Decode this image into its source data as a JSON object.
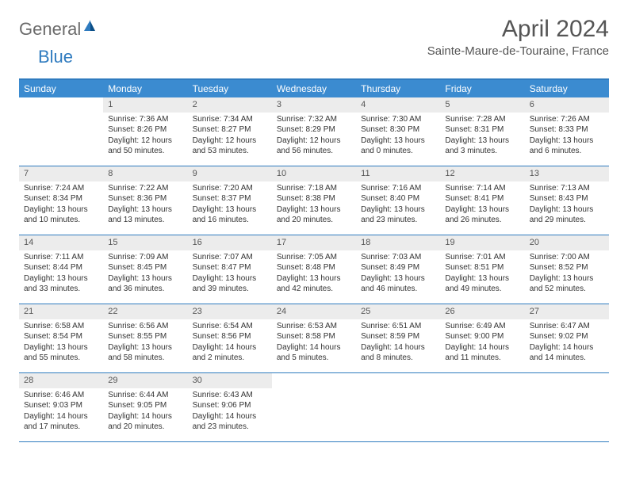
{
  "logo": {
    "general": "General",
    "blue": "Blue"
  },
  "header": {
    "month": "April 2024",
    "location": "Sainte-Maure-de-Touraine, France"
  },
  "colors": {
    "accent": "#3b8bd0",
    "border": "#2f7bbf",
    "dayband": "#ececec",
    "text": "#333333",
    "logo_gray": "#6b6b6b"
  },
  "daynames": [
    "Sunday",
    "Monday",
    "Tuesday",
    "Wednesday",
    "Thursday",
    "Friday",
    "Saturday"
  ],
  "first_weekday_index": 1,
  "days": [
    {
      "n": 1,
      "sr": "7:36 AM",
      "ss": "8:26 PM",
      "dl": "12 hours and 50 minutes."
    },
    {
      "n": 2,
      "sr": "7:34 AM",
      "ss": "8:27 PM",
      "dl": "12 hours and 53 minutes."
    },
    {
      "n": 3,
      "sr": "7:32 AM",
      "ss": "8:29 PM",
      "dl": "12 hours and 56 minutes."
    },
    {
      "n": 4,
      "sr": "7:30 AM",
      "ss": "8:30 PM",
      "dl": "13 hours and 0 minutes."
    },
    {
      "n": 5,
      "sr": "7:28 AM",
      "ss": "8:31 PM",
      "dl": "13 hours and 3 minutes."
    },
    {
      "n": 6,
      "sr": "7:26 AM",
      "ss": "8:33 PM",
      "dl": "13 hours and 6 minutes."
    },
    {
      "n": 7,
      "sr": "7:24 AM",
      "ss": "8:34 PM",
      "dl": "13 hours and 10 minutes."
    },
    {
      "n": 8,
      "sr": "7:22 AM",
      "ss": "8:36 PM",
      "dl": "13 hours and 13 minutes."
    },
    {
      "n": 9,
      "sr": "7:20 AM",
      "ss": "8:37 PM",
      "dl": "13 hours and 16 minutes."
    },
    {
      "n": 10,
      "sr": "7:18 AM",
      "ss": "8:38 PM",
      "dl": "13 hours and 20 minutes."
    },
    {
      "n": 11,
      "sr": "7:16 AM",
      "ss": "8:40 PM",
      "dl": "13 hours and 23 minutes."
    },
    {
      "n": 12,
      "sr": "7:14 AM",
      "ss": "8:41 PM",
      "dl": "13 hours and 26 minutes."
    },
    {
      "n": 13,
      "sr": "7:13 AM",
      "ss": "8:43 PM",
      "dl": "13 hours and 29 minutes."
    },
    {
      "n": 14,
      "sr": "7:11 AM",
      "ss": "8:44 PM",
      "dl": "13 hours and 33 minutes."
    },
    {
      "n": 15,
      "sr": "7:09 AM",
      "ss": "8:45 PM",
      "dl": "13 hours and 36 minutes."
    },
    {
      "n": 16,
      "sr": "7:07 AM",
      "ss": "8:47 PM",
      "dl": "13 hours and 39 minutes."
    },
    {
      "n": 17,
      "sr": "7:05 AM",
      "ss": "8:48 PM",
      "dl": "13 hours and 42 minutes."
    },
    {
      "n": 18,
      "sr": "7:03 AM",
      "ss": "8:49 PM",
      "dl": "13 hours and 46 minutes."
    },
    {
      "n": 19,
      "sr": "7:01 AM",
      "ss": "8:51 PM",
      "dl": "13 hours and 49 minutes."
    },
    {
      "n": 20,
      "sr": "7:00 AM",
      "ss": "8:52 PM",
      "dl": "13 hours and 52 minutes."
    },
    {
      "n": 21,
      "sr": "6:58 AM",
      "ss": "8:54 PM",
      "dl": "13 hours and 55 minutes."
    },
    {
      "n": 22,
      "sr": "6:56 AM",
      "ss": "8:55 PM",
      "dl": "13 hours and 58 minutes."
    },
    {
      "n": 23,
      "sr": "6:54 AM",
      "ss": "8:56 PM",
      "dl": "14 hours and 2 minutes."
    },
    {
      "n": 24,
      "sr": "6:53 AM",
      "ss": "8:58 PM",
      "dl": "14 hours and 5 minutes."
    },
    {
      "n": 25,
      "sr": "6:51 AM",
      "ss": "8:59 PM",
      "dl": "14 hours and 8 minutes."
    },
    {
      "n": 26,
      "sr": "6:49 AM",
      "ss": "9:00 PM",
      "dl": "14 hours and 11 minutes."
    },
    {
      "n": 27,
      "sr": "6:47 AM",
      "ss": "9:02 PM",
      "dl": "14 hours and 14 minutes."
    },
    {
      "n": 28,
      "sr": "6:46 AM",
      "ss": "9:03 PM",
      "dl": "14 hours and 17 minutes."
    },
    {
      "n": 29,
      "sr": "6:44 AM",
      "ss": "9:05 PM",
      "dl": "14 hours and 20 minutes."
    },
    {
      "n": 30,
      "sr": "6:43 AM",
      "ss": "9:06 PM",
      "dl": "14 hours and 23 minutes."
    }
  ],
  "labels": {
    "sunrise": "Sunrise:",
    "sunset": "Sunset:",
    "daylight": "Daylight:"
  }
}
